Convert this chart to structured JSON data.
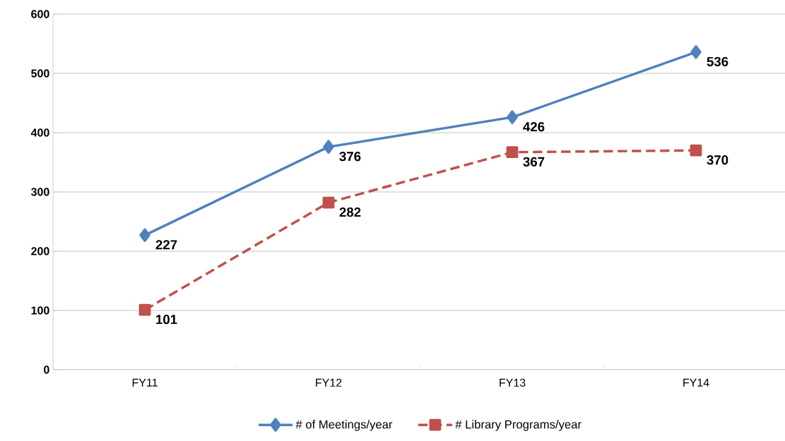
{
  "chart_data": {
    "type": "line",
    "categories": [
      "FY11",
      "FY12",
      "FY13",
      "FY14"
    ],
    "series": [
      {
        "name": "# of Meetings/year",
        "color": "#4f81bd",
        "values": [
          227,
          376,
          426,
          536
        ],
        "marker": "diamond",
        "line_style": "solid"
      },
      {
        "name": "# Library Programs/year",
        "color": "#c0504d",
        "values": [
          101,
          282,
          367,
          370
        ],
        "marker": "square",
        "line_style": "dashed"
      }
    ],
    "ylim": [
      0,
      600
    ],
    "yticks": [
      0,
      100,
      200,
      300,
      400,
      500,
      600
    ],
    "grid": "y",
    "legend": "bottom",
    "data_labels": true
  }
}
